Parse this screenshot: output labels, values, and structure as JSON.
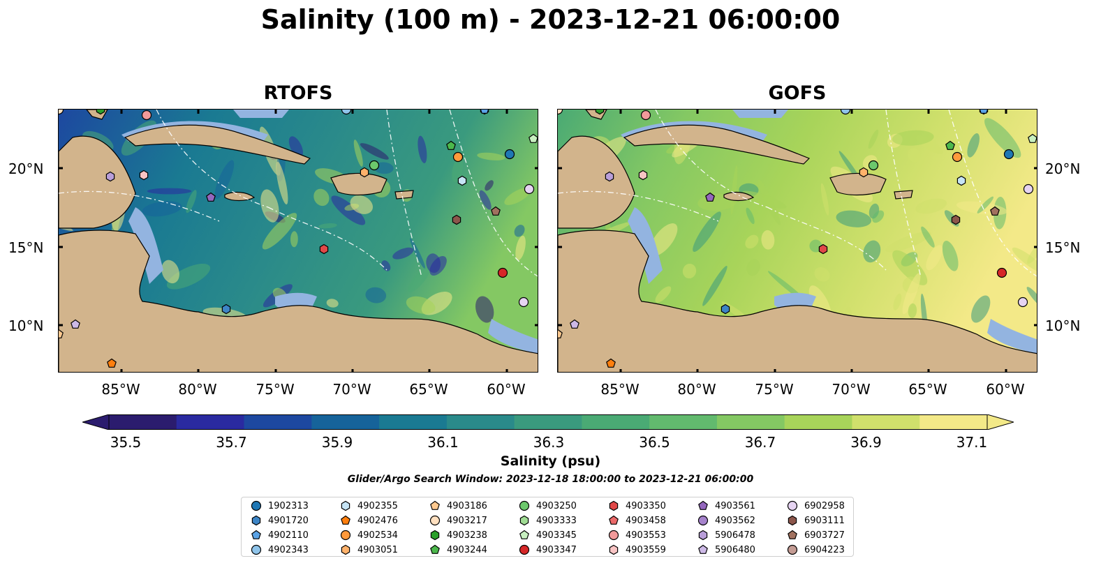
{
  "title": "Salinity (100 m) - 2023-12-21 06:00:00",
  "panels": [
    {
      "name": "RTOFS"
    },
    {
      "name": "GOFS"
    }
  ],
  "x_ticks": [
    "85°W",
    "80°W",
    "75°W",
    "70°W",
    "65°W",
    "60°W"
  ],
  "y_ticks": [
    "20°N",
    "15°N",
    "10°N"
  ],
  "colorbar": {
    "label": "Salinity (psu)",
    "ticks": [
      "35.5",
      "35.7",
      "35.9",
      "36.1",
      "36.3",
      "36.5",
      "36.7",
      "36.9",
      "37.1"
    ],
    "colors": [
      "#2b1c6e",
      "#2a2aa0",
      "#1d48a0",
      "#16639a",
      "#1a7a92",
      "#2a8a8a",
      "#3a9a7e",
      "#4aaa74",
      "#62ba6e",
      "#84c863",
      "#a8d45a",
      "#d0e06c",
      "#f3e988"
    ]
  },
  "search_window": "Glider/Argo Search Window: 2023-12-18 18:00:00 to 2023-12-21 06:00:00",
  "legend": [
    {
      "id": "1902313",
      "color": "#1f77b4",
      "marker": "circle"
    },
    {
      "id": "4901720",
      "color": "#3d85c6",
      "marker": "hexagon"
    },
    {
      "id": "4902110",
      "color": "#5ba3e6",
      "marker": "pentagon"
    },
    {
      "id": "4902343",
      "color": "#8fc4ea",
      "marker": "circle"
    },
    {
      "id": "4902355",
      "color": "#c6e4f5",
      "marker": "hexagon"
    },
    {
      "id": "4902476",
      "color": "#ff7f0e",
      "marker": "pentagon"
    },
    {
      "id": "4902534",
      "color": "#ff9a3c",
      "marker": "circle"
    },
    {
      "id": "4903051",
      "color": "#ffb26b",
      "marker": "hexagon"
    },
    {
      "id": "4903186",
      "color": "#ffc98f",
      "marker": "pentagon"
    },
    {
      "id": "4903217",
      "color": "#ffe0c0",
      "marker": "circle"
    },
    {
      "id": "4903238",
      "color": "#2ca02c",
      "marker": "hexagon"
    },
    {
      "id": "4903244",
      "color": "#4cb84c",
      "marker": "pentagon"
    },
    {
      "id": "4903250",
      "color": "#6cc86c",
      "marker": "circle"
    },
    {
      "id": "4903333",
      "color": "#a0dc94",
      "marker": "hexagon"
    },
    {
      "id": "4903345",
      "color": "#c8f0c0",
      "marker": "pentagon"
    },
    {
      "id": "4903347",
      "color": "#d62728",
      "marker": "circle"
    },
    {
      "id": "4903350",
      "color": "#e04848",
      "marker": "hexagon"
    },
    {
      "id": "4903458",
      "color": "#ec6a6a",
      "marker": "pentagon"
    },
    {
      "id": "4903553",
      "color": "#f29a9a",
      "marker": "circle"
    },
    {
      "id": "4903559",
      "color": "#f8c4c4",
      "marker": "hexagon"
    },
    {
      "id": "4903561",
      "color": "#9467bd",
      "marker": "pentagon"
    },
    {
      "id": "4903562",
      "color": "#a683cc",
      "marker": "circle"
    },
    {
      "id": "5906478",
      "color": "#b99ed9",
      "marker": "hexagon"
    },
    {
      "id": "5906480",
      "color": "#cdb9e6",
      "marker": "pentagon"
    },
    {
      "id": "6902958",
      "color": "#e6d4f2",
      "marker": "circle"
    },
    {
      "id": "6903111",
      "color": "#8c564b",
      "marker": "hexagon"
    },
    {
      "id": "6903727",
      "color": "#a1715f",
      "marker": "pentagon"
    },
    {
      "id": "6904223",
      "color": "#c49c94",
      "marker": "circle"
    }
  ]
}
